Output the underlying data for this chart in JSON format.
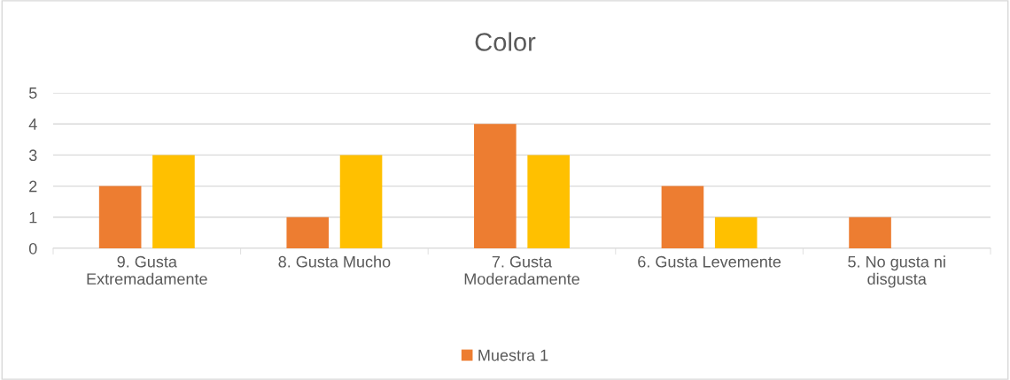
{
  "chart_data": {
    "type": "bar",
    "title": "Color",
    "categories": [
      "9. Gusta\nExtremadamente",
      "8. Gusta Mucho",
      "7. Gusta\nModeradamente",
      "6. Gusta Levemente",
      "5. No gusta ni\ndisgusta"
    ],
    "series": [
      {
        "name": "Muestra 1",
        "color": "#ed7d31",
        "values": [
          2,
          1,
          4,
          2,
          1
        ]
      },
      {
        "color": "#ffc000",
        "values": [
          3,
          3,
          3,
          1,
          null
        ]
      }
    ],
    "ylim": [
      0,
      5
    ],
    "yticks": [
      0,
      1,
      2,
      3,
      4,
      5
    ],
    "grid": "y",
    "legend": "bottom"
  }
}
